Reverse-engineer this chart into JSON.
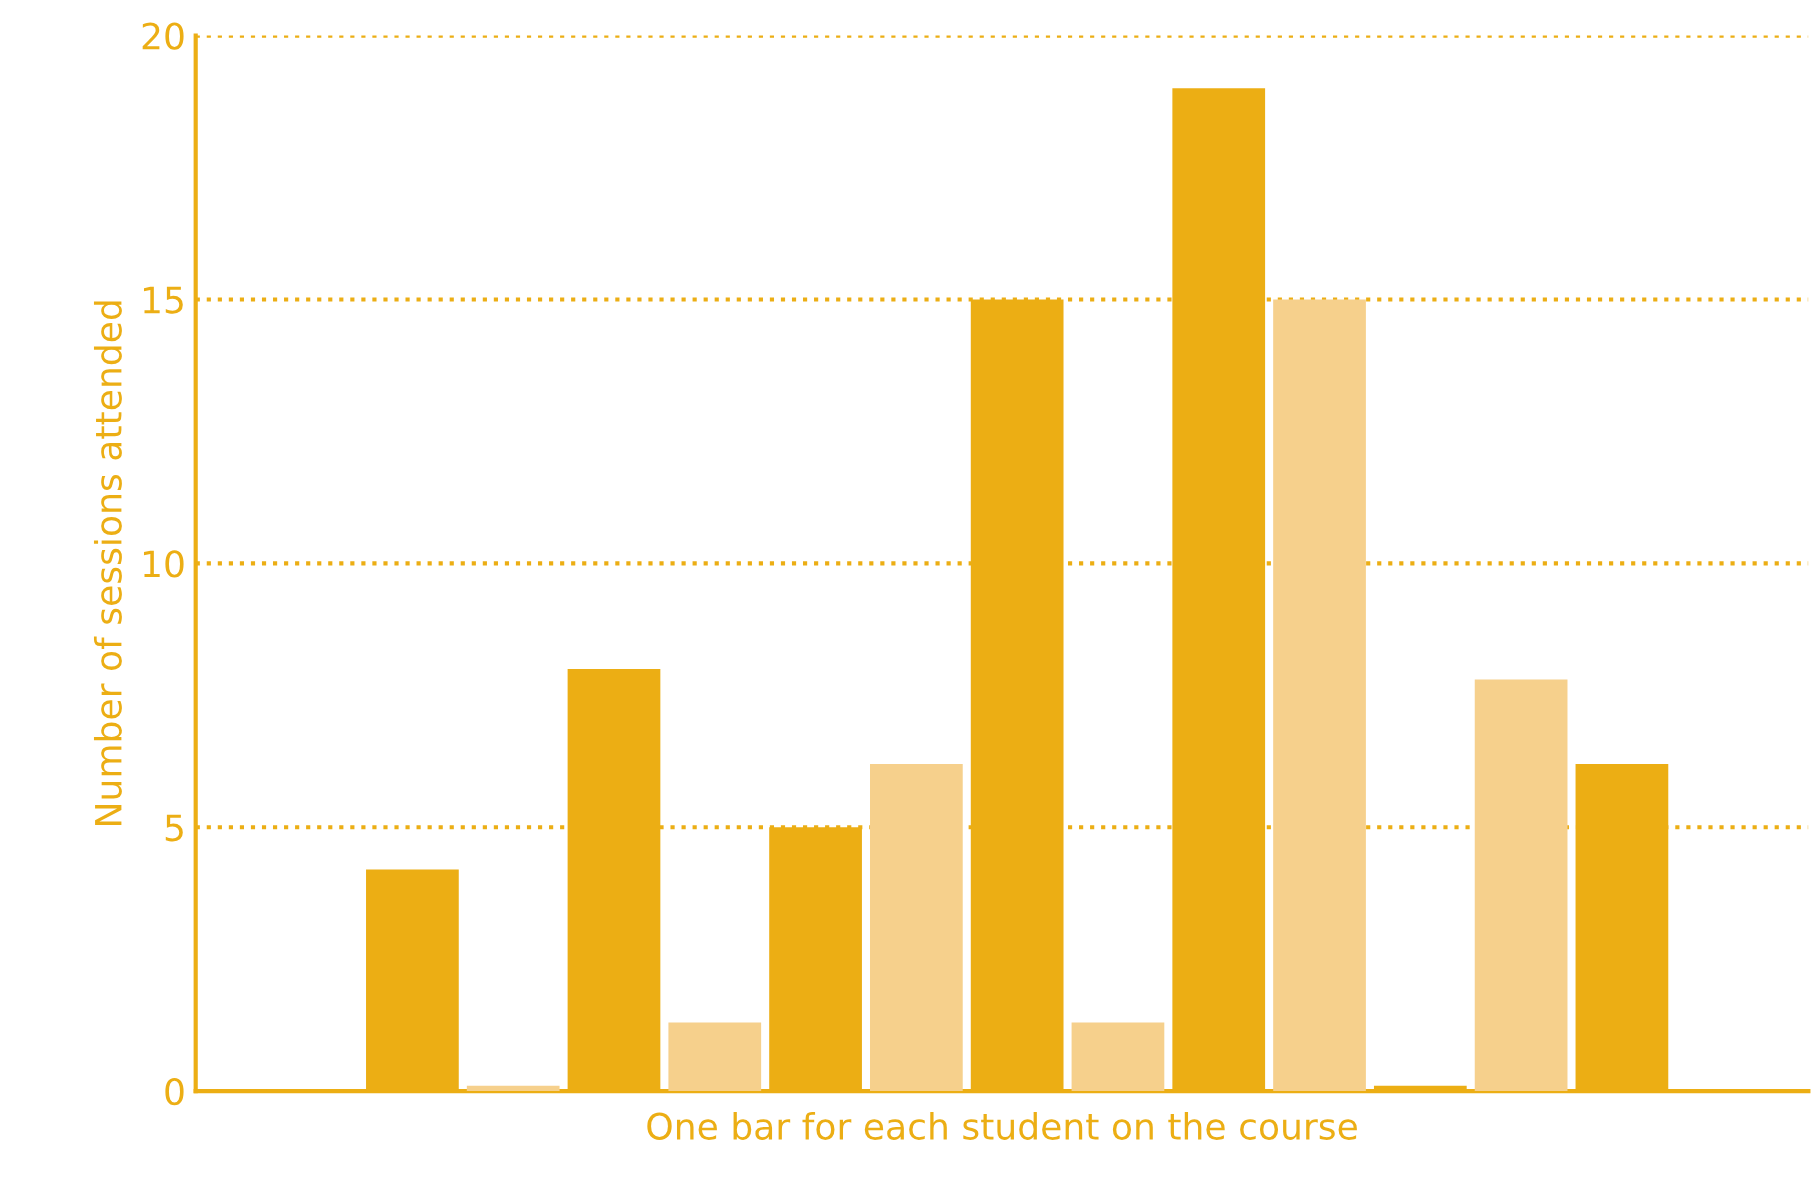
{
  "chart_data": {
    "type": "bar",
    "xlabel": "One bar for each student on the course",
    "ylabel": "Number of sessions attended",
    "categories": [
      null,
      null,
      null,
      null,
      null,
      null,
      null,
      null,
      null,
      null,
      null,
      null,
      null,
      null,
      null
    ],
    "values": [
      0,
      4.2,
      0.1,
      8,
      1.3,
      5,
      6.2,
      15,
      1.3,
      19,
      15,
      0.1,
      7.8,
      6.2,
      0
    ],
    "colors": [
      "#ecae14",
      "#ecae14",
      "#f6d08c",
      "#ecae14",
      "#f6d08c",
      "#ecae14",
      "#f6d08c",
      "#ecae14",
      "#f6d08c",
      "#ecae14",
      "#f6d08c",
      "#ecae14",
      "#f6d08c",
      "#ecae14",
      "#f6d08c"
    ],
    "ylim": [
      0,
      20
    ],
    "yticks": [
      0,
      5,
      10,
      15,
      20
    ],
    "grid": "y",
    "tick_labels": "y"
  }
}
